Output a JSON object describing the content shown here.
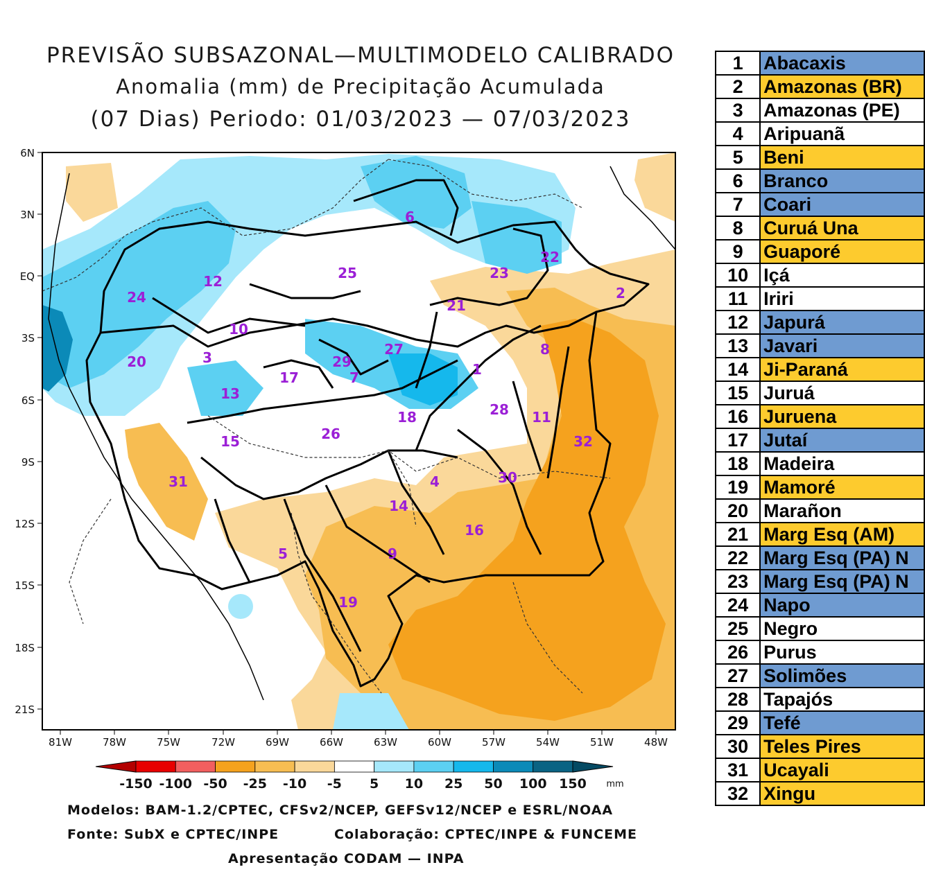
{
  "title": {
    "line1": "PREVISÃO SUBSAZONAL—MULTIMODELO CALIBRADO",
    "line2": "Anomalia (mm) de Precipitação Acumulada",
    "line3": "(07 Dias) Periodo: 01/03/2023 — 07/03/2023"
  },
  "axes": {
    "lat_labels": [
      "6N",
      "3N",
      "EQ",
      "3S",
      "6S",
      "9S",
      "12S",
      "15S",
      "18S",
      "21S"
    ],
    "lon_labels": [
      "81W",
      "78W",
      "75W",
      "72W",
      "69W",
      "66W",
      "63W",
      "60W",
      "57W",
      "54W",
      "51W",
      "48W"
    ]
  },
  "colorbar": {
    "unit": "mm",
    "tick_labels": [
      "-150",
      "-100",
      "-50",
      "-25",
      "-10",
      "-5",
      "5",
      "10",
      "25",
      "50",
      "100",
      "150"
    ],
    "colors": [
      "#b30000",
      "#e80000",
      "#f25f5f",
      "#f5a21e",
      "#f7bd52",
      "#fad89a",
      "#ffffff",
      "#a6e8fb",
      "#5cd0f2",
      "#15b8ec",
      "#0b8ab8",
      "#0a6383",
      "#054a63"
    ]
  },
  "footer": {
    "line1": "Modelos: BAM-1.2/CPTEC, CFSv2/NCEP, GEFSv12/NCEP e ESRL/NOAA",
    "line2a": "Fonte: SubX e CPTEC/INPE",
    "line2b": "Colaboração: CPTEC/INPE & FUNCEME",
    "line3": "Apresentação CODAM — INPA"
  },
  "basin_labels": [
    "1",
    "2",
    "3",
    "4",
    "5",
    "6",
    "7",
    "8",
    "9",
    "10",
    "11",
    "12",
    "13",
    "14",
    "15",
    "16",
    "17",
    "18",
    "19",
    "20",
    "21",
    "22",
    "23",
    "24",
    "25",
    "26",
    "27",
    "28",
    "29",
    "30",
    "31",
    "32"
  ],
  "basins": [
    {
      "n": "1",
      "name": "Abacaxis",
      "status": "blue"
    },
    {
      "n": "2",
      "name": "Amazonas (BR)",
      "status": "orange"
    },
    {
      "n": "3",
      "name": "Amazonas (PE)",
      "status": "white"
    },
    {
      "n": "4",
      "name": "Aripuanã",
      "status": "white"
    },
    {
      "n": "5",
      "name": "Beni",
      "status": "orange"
    },
    {
      "n": "6",
      "name": "Branco",
      "status": "blue"
    },
    {
      "n": "7",
      "name": "Coari",
      "status": "blue"
    },
    {
      "n": "8",
      "name": "Curuá Una",
      "status": "orange"
    },
    {
      "n": "9",
      "name": "Guaporé",
      "status": "orange"
    },
    {
      "n": "10",
      "name": "Içá",
      "status": "white"
    },
    {
      "n": "11",
      "name": "Iriri",
      "status": "white"
    },
    {
      "n": "12",
      "name": "Japurá",
      "status": "blue"
    },
    {
      "n": "13",
      "name": "Javari",
      "status": "blue"
    },
    {
      "n": "14",
      "name": "Ji-Paraná",
      "status": "orange"
    },
    {
      "n": "15",
      "name": "Juruá",
      "status": "white"
    },
    {
      "n": "16",
      "name": "Juruena",
      "status": "orange"
    },
    {
      "n": "17",
      "name": "Jutaí",
      "status": "blue"
    },
    {
      "n": "18",
      "name": "Madeira",
      "status": "white"
    },
    {
      "n": "19",
      "name": "Mamoré",
      "status": "orange"
    },
    {
      "n": "20",
      "name": "Marañon",
      "status": "white"
    },
    {
      "n": "21",
      "name": "Marg Esq (AM)",
      "status": "orange"
    },
    {
      "n": "22",
      "name": "Marg Esq (PA) N",
      "status": "blue"
    },
    {
      "n": "23",
      "name": "Marg Esq (PA) N",
      "status": "blue"
    },
    {
      "n": "24",
      "name": "Napo",
      "status": "blue"
    },
    {
      "n": "25",
      "name": "Negro",
      "status": "white"
    },
    {
      "n": "26",
      "name": "Purus",
      "status": "white"
    },
    {
      "n": "27",
      "name": "Solimões",
      "status": "blue"
    },
    {
      "n": "28",
      "name": "Tapajós",
      "status": "white"
    },
    {
      "n": "29",
      "name": "Tefé",
      "status": "blue"
    },
    {
      "n": "30",
      "name": "Teles Pires",
      "status": "orange"
    },
    {
      "n": "31",
      "name": "Ucayali",
      "status": "orange"
    },
    {
      "n": "32",
      "name": "Xingu",
      "status": "orange"
    }
  ]
}
